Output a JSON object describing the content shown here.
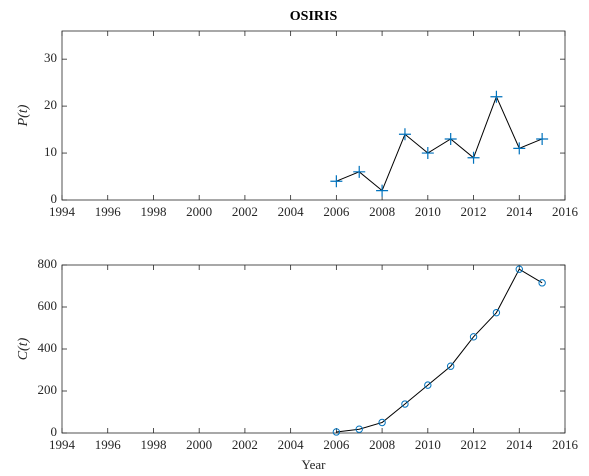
{
  "chart_data": [
    {
      "type": "line",
      "title": "OSIRIS",
      "ylabel": "P(t)",
      "marker": "plus",
      "x": [
        2006,
        2007,
        2008,
        2009,
        2010,
        2011,
        2012,
        2013,
        2014,
        2015
      ],
      "series": [
        {
          "color": "#0072bd",
          "values": [
            4,
            6,
            2,
            14,
            10,
            13,
            9,
            22,
            11,
            13
          ]
        }
      ],
      "xlim": [
        1994,
        2016
      ],
      "xticks": [
        1994,
        1996,
        1998,
        2000,
        2002,
        2004,
        2006,
        2008,
        2010,
        2012,
        2014,
        2016
      ],
      "ylim": [
        0,
        36
      ],
      "yticks": [
        0,
        10,
        20,
        30
      ]
    },
    {
      "type": "line",
      "xlabel": "Year",
      "ylabel": "C(t)",
      "marker": "circle",
      "x": [
        2006,
        2007,
        2008,
        2009,
        2010,
        2011,
        2012,
        2013,
        2014,
        2015
      ],
      "series": [
        {
          "color": "#0072bd",
          "values": [
            5,
            18,
            50,
            138,
            228,
            318,
            458,
            573,
            780,
            715
          ]
        }
      ],
      "xlim": [
        1994,
        2016
      ],
      "xticks": [
        1994,
        1996,
        1998,
        2000,
        2002,
        2004,
        2006,
        2008,
        2010,
        2012,
        2014,
        2016
      ],
      "ylim": [
        0,
        800
      ],
      "yticks": [
        0,
        200,
        400,
        600,
        800
      ]
    }
  ]
}
